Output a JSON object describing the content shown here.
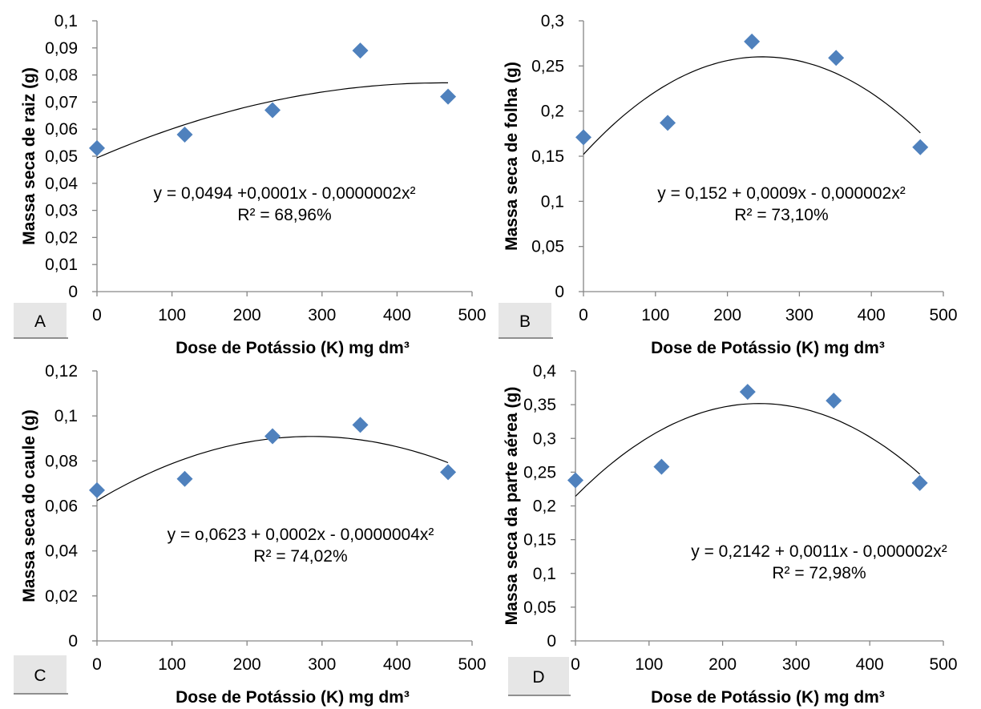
{
  "chart_data": [
    {
      "panel": "A",
      "type": "scatter",
      "xlabel": "Dose de Potássio (K) mg dm³",
      "ylabel": "Massa seca de raiz (g)",
      "xlim": [
        0,
        500
      ],
      "ylim": [
        0,
        0.1
      ],
      "xticks": [
        "0",
        "100",
        "200",
        "300",
        "400",
        "500"
      ],
      "yticks": [
        "0",
        "0,01",
        "0,02",
        "0,03",
        "0,04",
        "0,05",
        "0,06",
        "0,07",
        "0,08",
        "0,09",
        "0,1"
      ],
      "points": {
        "x": [
          0,
          117,
          234,
          351,
          468
        ],
        "y": [
          0.053,
          0.058,
          0.067,
          0.089,
          0.072
        ]
      },
      "trendline": {
        "type": "polynomial",
        "coefficients": [
          0.0494,
          0.00012,
          -1.3e-07
        ],
        "x_range": [
          0,
          468
        ]
      },
      "equation": "y = 0,0494 +0,0001x - 0,0000002x²",
      "r2": "R² = 68,96%",
      "grid": false,
      "marker_color": "#4F81BD"
    },
    {
      "panel": "B",
      "type": "scatter",
      "xlabel": "Dose de Potássio (K) mg dm³",
      "ylabel": "Massa seca de folha (g)",
      "xlim": [
        0,
        500
      ],
      "ylim": [
        0,
        0.3
      ],
      "xticks": [
        "0",
        "100",
        "200",
        "300",
        "400",
        "500"
      ],
      "yticks": [
        "0",
        "0,05",
        "0,1",
        "0,15",
        "0,2",
        "0,25",
        "0,3"
      ],
      "points": {
        "x": [
          0,
          117,
          234,
          351,
          468
        ],
        "y": [
          0.171,
          0.187,
          0.277,
          0.259,
          0.16
        ]
      },
      "trendline": {
        "type": "polynomial",
        "coefficients": [
          0.152,
          0.00087,
          -1.75e-06
        ],
        "x_range": [
          0,
          468
        ]
      },
      "equation": "y = 0,152 + 0,0009x - 0,000002x²",
      "r2": "R² = 73,10%",
      "grid": false,
      "marker_color": "#4F81BD"
    },
    {
      "panel": "C",
      "type": "scatter",
      "xlabel": "Dose de Potássio (K) mg dm³",
      "ylabel": "Massa seca do caule (g)",
      "xlim": [
        0,
        500
      ],
      "ylim": [
        0,
        0.12
      ],
      "xticks": [
        "0",
        "100",
        "200",
        "300",
        "400",
        "500"
      ],
      "yticks": [
        "0",
        "0,02",
        "0,04",
        "0,06",
        "0,08",
        "0,1",
        "0,12"
      ],
      "points": {
        "x": [
          0,
          117,
          234,
          351,
          468
        ],
        "y": [
          0.067,
          0.072,
          0.091,
          0.096,
          0.075
        ]
      },
      "trendline": {
        "type": "polynomial",
        "coefficients": [
          0.0623,
          0.0002,
          -3.5e-07
        ],
        "x_range": [
          0,
          468
        ]
      },
      "equation": "y = o,0623 + 0,0002x - 0,0000004x²",
      "r2": "R² = 74,02%",
      "grid": false,
      "marker_color": "#4F81BD"
    },
    {
      "panel": "D",
      "type": "scatter",
      "xlabel": "Dose de Potássio (K) mg dm³",
      "ylabel": "Massa seca da parte aérea (g)",
      "xlim": [
        0,
        500
      ],
      "ylim": [
        0,
        0.4
      ],
      "xticks": [
        "0",
        "100",
        "200",
        "300",
        "400",
        "500"
      ],
      "yticks": [
        "0",
        "0,05",
        "0,1",
        "0,15",
        "0,2",
        "0,25",
        "0,3",
        "0,35",
        "0,4"
      ],
      "points": {
        "x": [
          0,
          117,
          234,
          351,
          468
        ],
        "y": [
          0.238,
          0.258,
          0.369,
          0.356,
          0.234
        ]
      },
      "trendline": {
        "type": "polynomial",
        "coefficients": [
          0.2142,
          0.0011,
          -2.2e-06
        ],
        "x_range": [
          0,
          468
        ]
      },
      "equation": "y = 0,2142 + 0,0011x - 0,000002x²",
      "r2": "R² = 72,98%",
      "grid": false,
      "marker_color": "#4F81BD"
    }
  ]
}
